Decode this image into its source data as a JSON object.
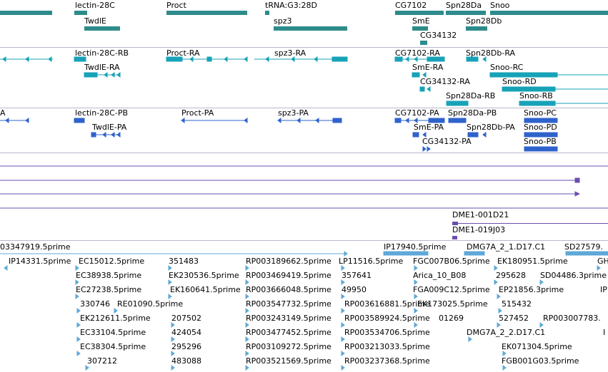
{
  "colors": {
    "gene": "#2e8b8b",
    "transcript": "#17a2b8",
    "protein": "#2f63cc",
    "purple": "#6a4fb0",
    "est": "#5fa8d8",
    "separator": "#b8b8c8"
  },
  "gene_track": {
    "labels": [
      "lectin-28C",
      "Proct",
      "tRNA:G3:28D",
      "CG7102",
      "Spn28Da",
      "Snoo",
      "TwdlE",
      "spz3",
      "SmE",
      "Spn28Db",
      "CG34132"
    ]
  },
  "transcript_track": {
    "labels": [
      "lectin-28C-RB",
      "Proct-RA",
      "spz3-RA",
      "CG7102-RA",
      "Spn28Db-RA",
      "TwdlE-RA",
      "SmE-RA",
      "Snoo-RC",
      "CG34132-RA",
      "Snoo-RD",
      "Spn28Da-RB",
      "Snoo-RB"
    ]
  },
  "protein_track": {
    "labels": [
      "A",
      "lectin-28C-PB",
      "Proct-PA",
      "spz3-PA",
      "CG7102-PA",
      "Spn28Da-PB",
      "Snoo-PC",
      "TwdlE-PA",
      "SmE-PA",
      "Spn28Db-PA",
      "Snoo-PD",
      "CG34132-PA",
      "Snoo-PB"
    ]
  },
  "clone_track": {
    "labels": [
      "DME1-001D21",
      "DME1-019J03"
    ]
  },
  "est_track": {
    "labels": [
      "03347919.5prime",
      "IP17940.5prime",
      "DMG7A_2_1.D17.C1",
      "SD27579.",
      "IP14331.5prime",
      "EC15012.5prime",
      "351483",
      "RP003189662.5prime",
      "LP11516.5prime",
      "FGC007B06.5prime",
      "EK180951.5prime",
      "GH",
      "EC38938.5prime",
      "EK230536.5prime",
      "RP003469419.5prime",
      "357641",
      "Arica_10_B08",
      "295628",
      "SD04486.3prime",
      "EC27238.5prime",
      "EK160641.5prime",
      "RP003666048.5prime",
      "49950",
      "FGA009C12.5prime",
      "EP21856.3prime",
      "IP",
      "330746",
      "RE01090.5prime",
      "RP003547732.5prime",
      "RP003616881.5prime",
      "EK173025.5prime",
      "515432",
      "EK212611.5prime",
      "207502",
      "RP003243149.5prime",
      "RP003589924.5prime",
      "01269",
      "527452",
      "RP003007783.",
      "EC33104.5prime",
      "424054",
      "RP003477452.5prime",
      "RP003534706.5prime",
      "DMG7A_2_2.D17.C1",
      "I",
      "EC38304.5prime",
      "295296",
      "RP003109272.5prime",
      "RP003213033.5prime",
      "EK071304.5prime",
      "307212",
      "483088",
      "RP003521569.5prime",
      "RP003237368.5prime",
      "FGB001G03.5prime"
    ]
  }
}
